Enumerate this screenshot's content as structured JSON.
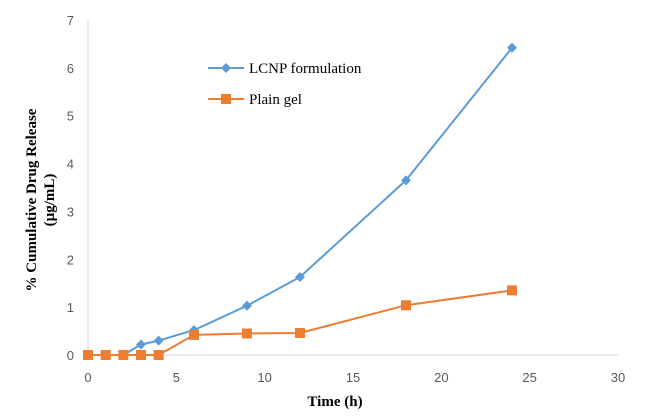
{
  "chart_data": {
    "type": "line",
    "xlabel": "Time (h)",
    "ylabel_line1": "% Cumulative Drug Release",
    "ylabel_line2": "(µg/mL)",
    "xlim": [
      0,
      30
    ],
    "ylim": [
      0,
      7
    ],
    "xticks": [
      0,
      5,
      10,
      15,
      20,
      25,
      30
    ],
    "yticks": [
      0,
      1,
      2,
      3,
      4,
      5,
      6,
      7
    ],
    "grid": false,
    "legend_position": "top-center",
    "series": [
      {
        "name": "LCNP formulation",
        "color": "#5b9bd5",
        "marker": "diamond",
        "x": [
          0,
          1,
          2,
          3,
          4,
          6,
          9,
          12,
          18,
          24
        ],
        "y": [
          0,
          0,
          0,
          0.22,
          0.3,
          0.52,
          1.03,
          1.63,
          3.65,
          6.42
        ]
      },
      {
        "name": "Plain gel",
        "color": "#ed7d31",
        "marker": "square",
        "x": [
          0,
          1,
          2,
          3,
          4,
          6,
          9,
          12,
          18,
          24
        ],
        "y": [
          0,
          0,
          0,
          0,
          0,
          0.42,
          0.45,
          0.46,
          1.04,
          1.35
        ]
      }
    ]
  }
}
